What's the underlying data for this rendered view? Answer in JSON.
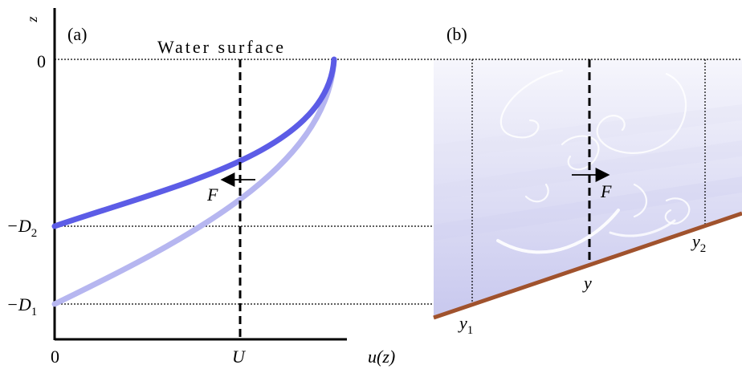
{
  "panel_a": {
    "label": "(a)",
    "surface_label": "Water surface",
    "z_axis_label": "z",
    "u_axis_label": "u(z)",
    "zero_z_label": "0",
    "zero_u_label": "0",
    "u_mark_label": "U",
    "d2_label": "−D",
    "d2_sub": "2",
    "d1_label": "−D",
    "d1_sub": "1",
    "force_label": "F",
    "colors": {
      "deep_profile": "#5c5ce6",
      "shallow_profile": "#b6b6f0"
    }
  },
  "panel_b": {
    "label": "(b)",
    "force_label": "F",
    "y_label": "y",
    "y1_label": "y",
    "y1_sub": "1",
    "y2_label": "y",
    "y2_sub": "2",
    "colors": {
      "bed": "#a0522d",
      "water_top": "#f4f4fb",
      "water_bottom": "#c9c9ee"
    }
  }
}
